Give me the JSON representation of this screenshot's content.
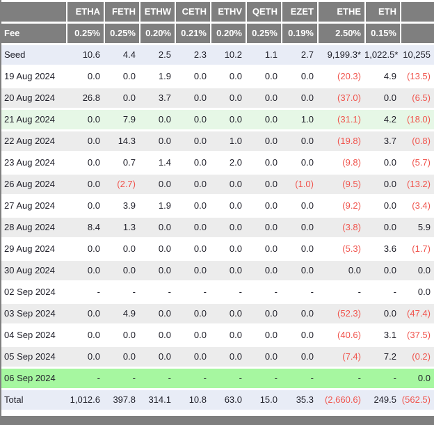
{
  "colors": {
    "header_bg": "#7f7f7f",
    "header_text": "#ffffff",
    "row_white": "#ffffff",
    "row_gray": "#ececec",
    "row_seed": "#e8ecf6",
    "row_green_soft": "#e6f7e6",
    "row_green_bright": "#a6f7a0",
    "negative": "#f0544d",
    "text": "#21212b",
    "frame_border": "#7f7f7f"
  },
  "chart_data": {
    "type": "table",
    "title": "",
    "corner_label": "",
    "last_column_label": "",
    "columns": [
      "ETHA",
      "FETH",
      "ETHW",
      "CETH",
      "ETHV",
      "QETH",
      "EZET",
      "ETHE",
      "ETH"
    ],
    "fee_row": {
      "label": "Fee",
      "values": [
        "0.25%",
        "0.25%",
        "0.20%",
        "0.21%",
        "0.20%",
        "0.25%",
        "0.19%",
        "2.50%",
        "0.15%"
      ],
      "total": ""
    },
    "rows": [
      {
        "label": "Seed",
        "values": [
          "10.6",
          "4.4",
          "2.5",
          "2.3",
          "10.2",
          "1.1",
          "2.7",
          "9,199.3*",
          "1,022.5*"
        ],
        "total": "10,255",
        "bg": "seed"
      },
      {
        "label": "19 Aug 2024",
        "values": [
          "0.0",
          "0.0",
          "1.9",
          "0.0",
          "0.0",
          "0.0",
          "0.0",
          "(20.3)",
          "4.9"
        ],
        "total": "(13.5)",
        "bg": "white"
      },
      {
        "label": "20 Aug 2024",
        "values": [
          "26.8",
          "0.0",
          "3.7",
          "0.0",
          "0.0",
          "0.0",
          "0.0",
          "(37.0)",
          "0.0"
        ],
        "total": "(6.5)",
        "bg": "gray"
      },
      {
        "label": "21 Aug 2024",
        "values": [
          "0.0",
          "7.9",
          "0.0",
          "0.0",
          "0.0",
          "0.0",
          "1.0",
          "(31.1)",
          "4.2"
        ],
        "total": "(18.0)",
        "bg": "green_soft"
      },
      {
        "label": "22 Aug 2024",
        "values": [
          "0.0",
          "14.3",
          "0.0",
          "0.0",
          "1.0",
          "0.0",
          "0.0",
          "(19.8)",
          "3.7"
        ],
        "total": "(0.8)",
        "bg": "gray"
      },
      {
        "label": "23 Aug 2024",
        "values": [
          "0.0",
          "0.7",
          "1.4",
          "0.0",
          "2.0",
          "0.0",
          "0.0",
          "(9.8)",
          "0.0"
        ],
        "total": "(5.7)",
        "bg": "white"
      },
      {
        "label": "26 Aug 2024",
        "values": [
          "0.0",
          "(2.7)",
          "0.0",
          "0.0",
          "0.0",
          "0.0",
          "(1.0)",
          "(9.5)",
          "0.0"
        ],
        "total": "(13.2)",
        "bg": "gray"
      },
      {
        "label": "27 Aug 2024",
        "values": [
          "0.0",
          "3.9",
          "1.9",
          "0.0",
          "0.0",
          "0.0",
          "0.0",
          "(9.2)",
          "0.0"
        ],
        "total": "(3.4)",
        "bg": "white"
      },
      {
        "label": "28 Aug 2024",
        "values": [
          "8.4",
          "1.3",
          "0.0",
          "0.0",
          "0.0",
          "0.0",
          "0.0",
          "(3.8)",
          "0.0"
        ],
        "total": "5.9",
        "bg": "gray"
      },
      {
        "label": "29 Aug 2024",
        "values": [
          "0.0",
          "0.0",
          "0.0",
          "0.0",
          "0.0",
          "0.0",
          "0.0",
          "(5.3)",
          "3.6"
        ],
        "total": "(1.7)",
        "bg": "white"
      },
      {
        "label": "30 Aug 2024",
        "values": [
          "0.0",
          "0.0",
          "0.0",
          "0.0",
          "0.0",
          "0.0",
          "0.0",
          "0.0",
          "0.0"
        ],
        "total": "0.0",
        "bg": "gray"
      },
      {
        "label": "02 Sep 2024",
        "values": [
          "-",
          "-",
          "-",
          "-",
          "-",
          "-",
          "-",
          "-",
          "-"
        ],
        "total": "0.0",
        "bg": "white"
      },
      {
        "label": "03 Sep 2024",
        "values": [
          "0.0",
          "4.9",
          "0.0",
          "0.0",
          "0.0",
          "0.0",
          "0.0",
          "(52.3)",
          "0.0"
        ],
        "total": "(47.4)",
        "bg": "gray"
      },
      {
        "label": "04 Sep 2024",
        "values": [
          "0.0",
          "0.0",
          "0.0",
          "0.0",
          "0.0",
          "0.0",
          "0.0",
          "(40.6)",
          "3.1"
        ],
        "total": "(37.5)",
        "bg": "white"
      },
      {
        "label": "05 Sep 2024",
        "values": [
          "0.0",
          "0.0",
          "0.0",
          "0.0",
          "0.0",
          "0.0",
          "0.0",
          "(7.4)",
          "7.2"
        ],
        "total": "(0.2)",
        "bg": "gray"
      },
      {
        "label": "06 Sep 2024",
        "values": [
          "-",
          "-",
          "-",
          "-",
          "-",
          "-",
          "-",
          "-",
          "-"
        ],
        "total": "0.0",
        "bg": "green_bright"
      },
      {
        "label": "Total",
        "values": [
          "1,012.6",
          "397.8",
          "314.1",
          "10.8",
          "63.0",
          "15.0",
          "35.3",
          "(2,660.6)",
          "249.5"
        ],
        "total": "(562.5)",
        "bg": "seed"
      }
    ]
  }
}
